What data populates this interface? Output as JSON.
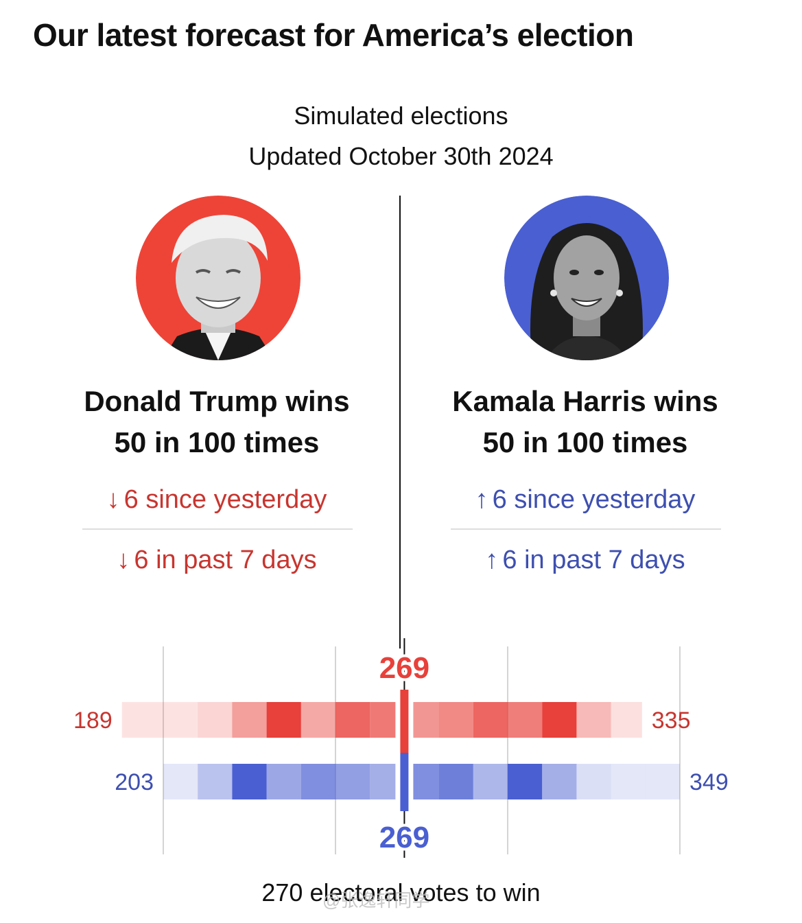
{
  "headline": "Our latest forecast for America’s election",
  "subtitle_line1": "Simulated elections",
  "subtitle_line2": "Updated October 30th 2024",
  "colors": {
    "republican": "#e8403a",
    "democrat": "#4a5fd1",
    "rep_text": "#c8352f",
    "dem_text": "#3d4fb0"
  },
  "trump": {
    "wins_line": "Donald Trump wins",
    "times_line": "50 in 100 times",
    "change_day_arrow": "↓",
    "change_day": "6 since yesterday",
    "change_week_arrow": "↓",
    "change_week": "6 in past 7 days",
    "portrait_icon": "trump-portrait"
  },
  "harris": {
    "wins_line": "Kamala Harris wins",
    "times_line": "50 in 100 times",
    "change_day_arrow": "↑",
    "change_day": "6 since yesterday",
    "change_week_arrow": "↑",
    "change_week": "6 in past 7 days",
    "portrait_icon": "harris-portrait"
  },
  "chart_data": {
    "type": "heatmap",
    "title": "",
    "xlabel": "270 electoral votes to win",
    "xlim": [
      200,
      350
    ],
    "gridlines": [
      200,
      250,
      300,
      350
    ],
    "series": [
      {
        "name": "Donald Trump",
        "color": "#e8403a",
        "min_label": "189",
        "max_label": "335",
        "median_label": "269",
        "median": 269,
        "bins": [
          {
            "start": 188,
            "end": 200,
            "intensity": 0.15
          },
          {
            "start": 200,
            "end": 210,
            "intensity": 0.15
          },
          {
            "start": 210,
            "end": 220,
            "intensity": 0.22
          },
          {
            "start": 220,
            "end": 230,
            "intensity": 0.5
          },
          {
            "start": 230,
            "end": 240,
            "intensity": 1.0
          },
          {
            "start": 240,
            "end": 250,
            "intensity": 0.45
          },
          {
            "start": 250,
            "end": 260,
            "intensity": 0.8
          },
          {
            "start": 260,
            "end": 268,
            "intensity": 0.7
          },
          {
            "start": 270,
            "end": 274,
            "intensity": 0.55
          },
          {
            "start": 274,
            "end": 280,
            "intensity": 0.55
          },
          {
            "start": 280,
            "end": 290,
            "intensity": 0.62
          },
          {
            "start": 290,
            "end": 300,
            "intensity": 0.8
          },
          {
            "start": 300,
            "end": 310,
            "intensity": 0.68
          },
          {
            "start": 310,
            "end": 320,
            "intensity": 1.0
          },
          {
            "start": 320,
            "end": 330,
            "intensity": 0.36
          },
          {
            "start": 330,
            "end": 339,
            "intensity": 0.16
          }
        ]
      },
      {
        "name": "Kamala Harris",
        "color": "#4a5fd1",
        "min_label": "203",
        "max_label": "349",
        "median_label": "269",
        "median": 269,
        "bins": [
          {
            "start": 200,
            "end": 210,
            "intensity": 0.15
          },
          {
            "start": 210,
            "end": 220,
            "intensity": 0.38
          },
          {
            "start": 220,
            "end": 230,
            "intensity": 1.0
          },
          {
            "start": 230,
            "end": 240,
            "intensity": 0.55
          },
          {
            "start": 240,
            "end": 250,
            "intensity": 0.7
          },
          {
            "start": 250,
            "end": 260,
            "intensity": 0.6
          },
          {
            "start": 260,
            "end": 268,
            "intensity": 0.5
          },
          {
            "start": 270,
            "end": 274,
            "intensity": 0.7
          },
          {
            "start": 274,
            "end": 280,
            "intensity": 0.7
          },
          {
            "start": 280,
            "end": 290,
            "intensity": 0.8
          },
          {
            "start": 290,
            "end": 300,
            "intensity": 0.45
          },
          {
            "start": 300,
            "end": 310,
            "intensity": 1.0
          },
          {
            "start": 310,
            "end": 320,
            "intensity": 0.5
          },
          {
            "start": 320,
            "end": 330,
            "intensity": 0.2
          },
          {
            "start": 330,
            "end": 340,
            "intensity": 0.15
          },
          {
            "start": 340,
            "end": 350,
            "intensity": 0.15
          }
        ]
      }
    ]
  },
  "watermark": "@张逸轩同学"
}
